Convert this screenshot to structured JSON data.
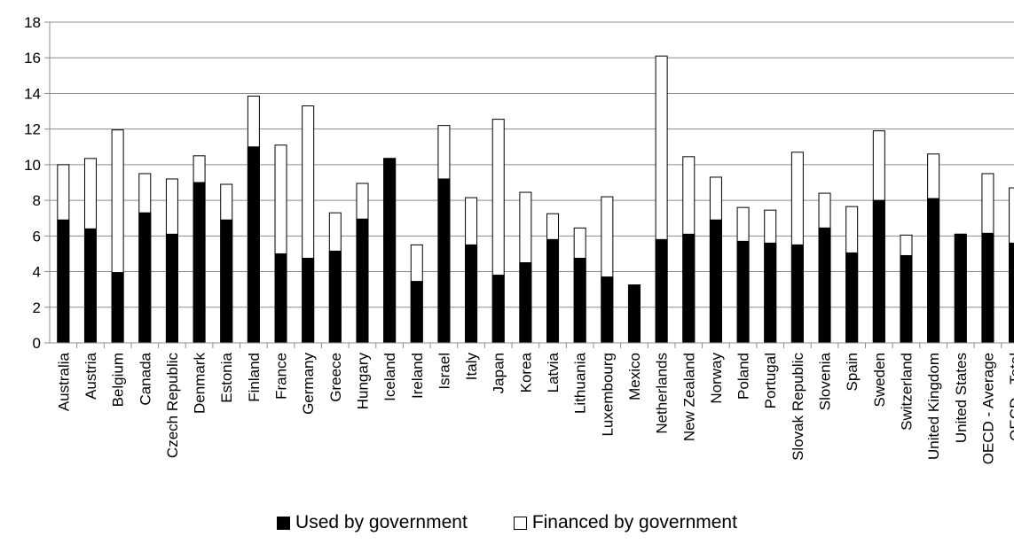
{
  "chart_data": {
    "type": "bar",
    "stacked": "overlay",
    "categories": [
      "Australia",
      "Austria",
      "Belgium",
      "Canada",
      "Czech Republic",
      "Denmark",
      "Estonia",
      "Finland",
      "France",
      "Germany",
      "Greece",
      "Hungary",
      "Iceland",
      "Ireland",
      "Israel",
      "Italy",
      "Japan",
      "Korea",
      "Latvia",
      "Lithuania",
      "Luxembourg",
      "Mexico",
      "Netherlands",
      "New Zealand",
      "Norway",
      "Poland",
      "Portugal",
      "Slovak Republic",
      "Slovenia",
      "Spain",
      "Sweden",
      "Switzerland",
      "United Kingdom",
      "United States",
      "OECD - Average",
      "OECD - Total"
    ],
    "series": [
      {
        "name": "Used by government",
        "color": "#000000",
        "values": [
          6.9,
          6.4,
          3.95,
          7.3,
          6.1,
          9.0,
          6.9,
          11.0,
          5.0,
          4.75,
          5.15,
          6.95,
          10.35,
          3.45,
          9.2,
          5.5,
          3.8,
          4.5,
          5.8,
          4.75,
          3.7,
          3.25,
          5.8,
          6.1,
          6.9,
          5.7,
          5.6,
          5.5,
          6.45,
          5.05,
          8.0,
          4.9,
          8.1,
          6.1,
          6.15,
          5.6
        ]
      },
      {
        "name": "Financed by government",
        "color": "#ffffff",
        "values": [
          10.0,
          10.35,
          11.95,
          9.5,
          9.2,
          10.5,
          8.9,
          13.85,
          11.1,
          13.3,
          7.3,
          8.95,
          10.35,
          5.5,
          12.2,
          8.15,
          12.55,
          8.45,
          7.25,
          6.45,
          8.2,
          3.25,
          16.1,
          10.45,
          9.3,
          7.6,
          7.45,
          10.7,
          8.4,
          7.65,
          11.9,
          6.05,
          10.6,
          6.1,
          9.5,
          8.7
        ]
      }
    ],
    "ylim": [
      0,
      18
    ],
    "yticks": [
      0,
      2,
      4,
      6,
      8,
      10,
      12,
      14,
      16,
      18
    ],
    "grid": true,
    "legend_position": "bottom"
  }
}
